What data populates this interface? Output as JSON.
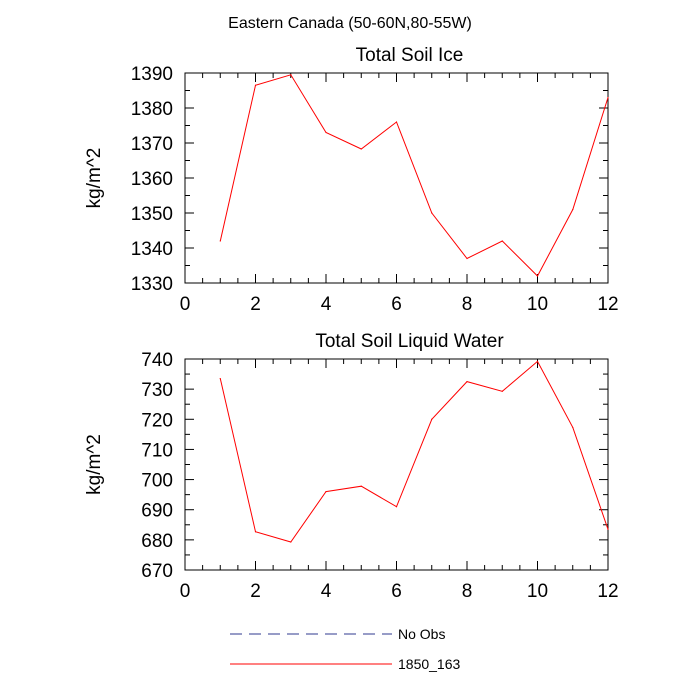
{
  "figure_title": "Eastern Canada (50-60N,80-55W)",
  "legend": [
    {
      "label": "No Obs",
      "color": "#2f3a8f",
      "style": "dashed"
    },
    {
      "label": "1850_163",
      "color": "#ff0000",
      "style": "solid"
    }
  ],
  "chart_data": [
    {
      "type": "line",
      "title": "Total Soil Ice",
      "xlabel": "",
      "ylabel": "kg/m^2",
      "xlim": [
        0,
        12
      ],
      "ylim": [
        1330,
        1390
      ],
      "xticks": [
        0,
        2,
        4,
        6,
        8,
        10,
        12
      ],
      "yticks": [
        1330,
        1340,
        1350,
        1360,
        1370,
        1380,
        1390
      ],
      "grid": false,
      "series": [
        {
          "name": "1850_163",
          "color": "#ff0000",
          "x": [
            1,
            2,
            3,
            4,
            5,
            6,
            7,
            8,
            9,
            10,
            11,
            12
          ],
          "values": [
            1342,
            1386.5,
            1389.5,
            1373,
            1368.3,
            1376,
            1350,
            1337,
            1342,
            1332,
            1351,
            1383
          ]
        }
      ]
    },
    {
      "type": "line",
      "title": "Total Soil Liquid Water",
      "xlabel": "",
      "ylabel": "kg/m^2",
      "xlim": [
        0,
        12
      ],
      "ylim": [
        670,
        740
      ],
      "xticks": [
        0,
        2,
        4,
        6,
        8,
        10,
        12
      ],
      "yticks": [
        670,
        680,
        690,
        700,
        710,
        720,
        730,
        740
      ],
      "grid": false,
      "series": [
        {
          "name": "1850_163",
          "color": "#ff0000",
          "x": [
            1,
            2,
            3,
            4,
            5,
            6,
            7,
            8,
            9,
            10,
            11,
            12
          ],
          "values": [
            733.5,
            682.7,
            679.3,
            696,
            697.8,
            691,
            720,
            732.5,
            729.3,
            739.2,
            717.3,
            683.5
          ]
        }
      ]
    }
  ]
}
